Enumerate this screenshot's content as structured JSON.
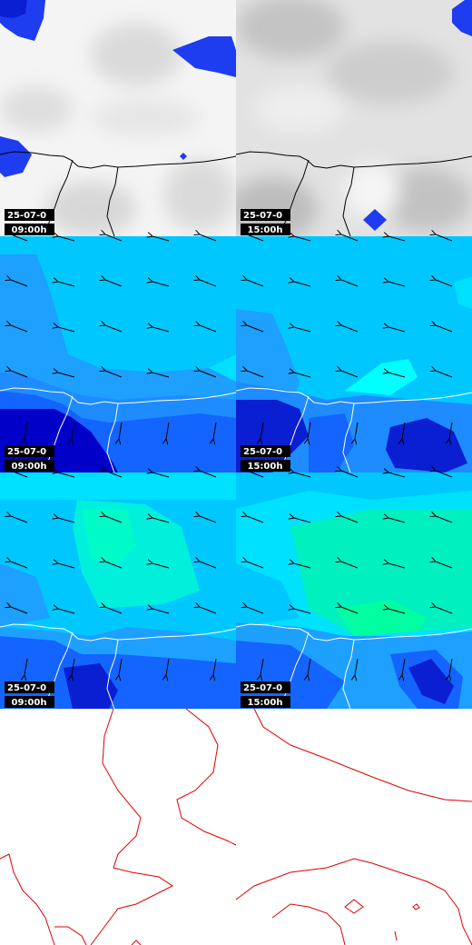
{
  "panels": [
    {
      "date": "25-07-0",
      "time": "09:00h"
    },
    {
      "date": "25-07-0",
      "time": "15:00h"
    },
    {
      "date": "25-07-0",
      "time": "09:00h"
    },
    {
      "date": "25-07-0",
      "time": "15:00h"
    },
    {
      "date": "25-07-0",
      "time": "09:00h"
    },
    {
      "date": "25-07-0",
      "time": "15:00h"
    }
  ]
}
